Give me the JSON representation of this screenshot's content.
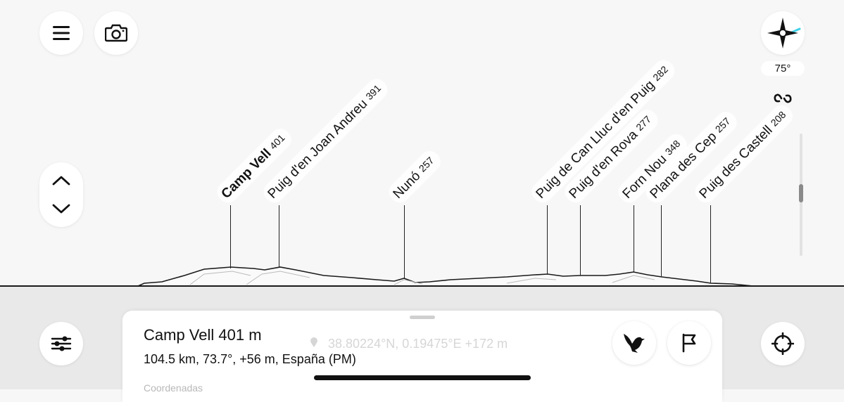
{
  "peaks": [
    {
      "name": "Camp Vell",
      "alt": "401",
      "main": true
    },
    {
      "name": "Puig d'en Joan Andreu",
      "alt": "391"
    },
    {
      "name": "Nunó",
      "alt": "257"
    },
    {
      "name": "Puig de Can Lluc d'en Puig",
      "alt": "282"
    },
    {
      "name": "Puig d'en Rova",
      "alt": "277"
    },
    {
      "name": "Forn Nou",
      "alt": "348"
    },
    {
      "name": "Plana des Cep",
      "alt": "257"
    },
    {
      "name": "Puig des Castell",
      "alt": "208"
    }
  ],
  "toolbar": {
    "menu_icon": "hamburger-menu-icon",
    "camera_icon": "camera-icon",
    "compass_icon": "compass-icon",
    "heading": "75°",
    "link_icon": "link-icon",
    "up_icon": "chevron-up-icon",
    "down_icon": "chevron-down-icon",
    "filters_icon": "sliders-icon",
    "locate_icon": "crosshair-icon"
  },
  "sheet": {
    "title": "Camp Vell 401 m",
    "subtitle": "104.5 km, 73.7°, +56 m, España (PM)",
    "coords": "38.80224°N, 0.19475°E +172 m",
    "section_label": "Coordenadas",
    "bird_icon": "bird-icon",
    "flag_icon": "flag-icon"
  },
  "colors": {
    "compass_accent": "#3fd0e8",
    "sky": "#f7f7f7",
    "ground": "#e9e9e9"
  }
}
